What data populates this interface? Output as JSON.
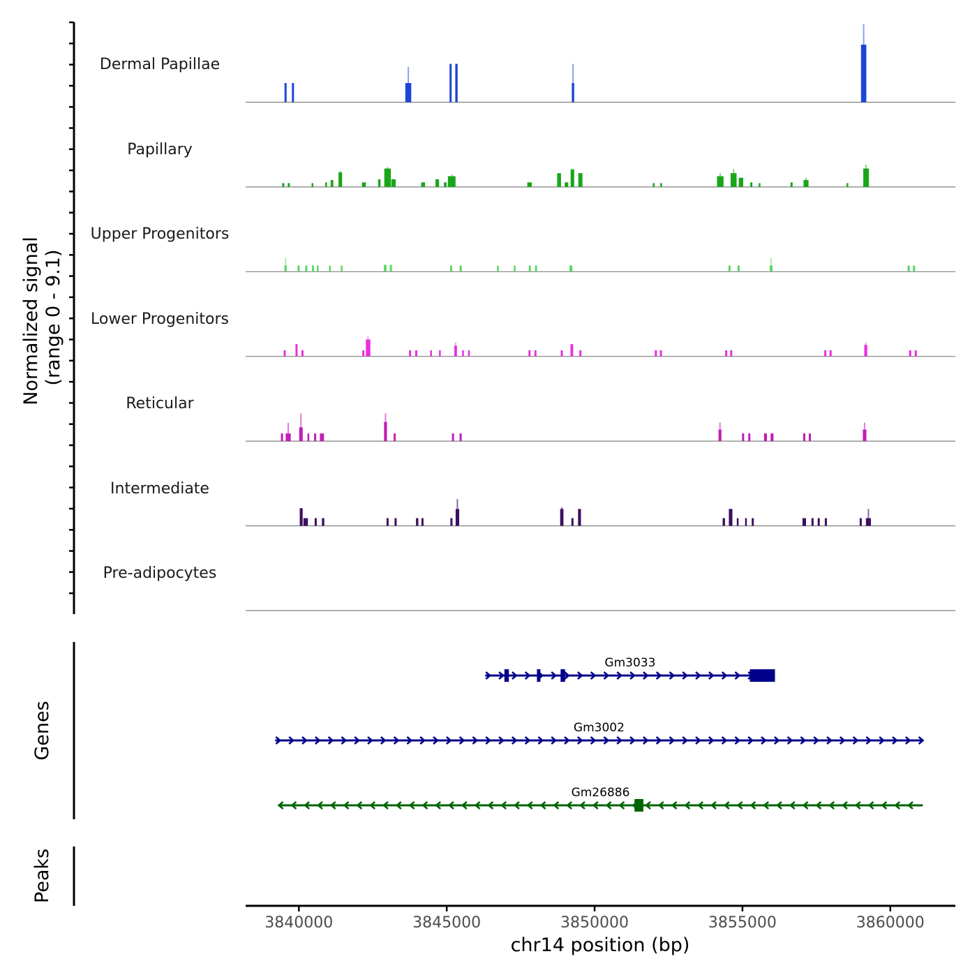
{
  "chart_data": {
    "type": "coverage-track",
    "y_axis_title_line1": "Normalized signal",
    "y_axis_title_line2": "(range 0 - 9.1)",
    "y_range": [
      0,
      9.1
    ],
    "x_axis_title": "chr14 position (bp)",
    "x_range": [
      3838200,
      3862200
    ],
    "x_ticks": [
      3840000,
      3845000,
      3850000,
      3855000,
      3860000
    ],
    "x_tick_labels": [
      "3840000",
      "3845000",
      "3850000",
      "3855000",
      "3860000"
    ],
    "tracks": [
      {
        "name": "Dermal Papillae",
        "color": "#1b46d6",
        "highlight": "#8aa0f0",
        "peaks": [
          [
            3839550,
            70,
            2.5
          ],
          [
            3839800,
            70,
            2.5
          ],
          [
            3843700,
            200,
            2.5,
            4.6
          ],
          [
            3845130,
            70,
            5.0
          ],
          [
            3845330,
            80,
            5.0
          ],
          [
            3849270,
            80,
            2.5,
            5.0
          ],
          [
            3859100,
            180,
            7.5,
            10.2
          ]
        ]
      },
      {
        "name": "Papillary",
        "color": "#19a619",
        "highlight": "#7fd67f",
        "peaks": [
          [
            3839470,
            70,
            0.5
          ],
          [
            3839660,
            70,
            0.5
          ],
          [
            3840460,
            60,
            0.5
          ],
          [
            3840920,
            60,
            0.6
          ],
          [
            3841120,
            90,
            0.9
          ],
          [
            3841400,
            120,
            1.9,
            2.1
          ],
          [
            3842200,
            130,
            0.6
          ],
          [
            3842720,
            80,
            1.0
          ],
          [
            3843000,
            220,
            2.4,
            2.6
          ],
          [
            3843200,
            150,
            1.0
          ],
          [
            3844200,
            130,
            0.6
          ],
          [
            3844680,
            120,
            1.0
          ],
          [
            3844950,
            90,
            0.6
          ],
          [
            3845170,
            260,
            1.4,
            1.6
          ],
          [
            3847800,
            150,
            0.6
          ],
          [
            3848800,
            130,
            1.8
          ],
          [
            3849050,
            120,
            0.6
          ],
          [
            3849250,
            120,
            2.3
          ],
          [
            3849520,
            140,
            1.8
          ],
          [
            3852000,
            60,
            0.5
          ],
          [
            3852250,
            60,
            0.5
          ],
          [
            3854250,
            220,
            1.4,
            1.8
          ],
          [
            3854700,
            200,
            1.8,
            2.3
          ],
          [
            3854950,
            150,
            1.2
          ],
          [
            3855300,
            70,
            0.6
          ],
          [
            3855580,
            60,
            0.5
          ],
          [
            3856660,
            70,
            0.6
          ],
          [
            3857150,
            170,
            0.9,
            1.2
          ],
          [
            3858550,
            60,
            0.5
          ],
          [
            3859180,
            190,
            2.4,
            2.9
          ]
        ]
      },
      {
        "name": "Upper Progenitors",
        "color": "#5fd66a",
        "highlight": "#a6f0ad",
        "peaks": [
          [
            3839550,
            80,
            0.8,
            1.8
          ],
          [
            3839990,
            70,
            0.8
          ],
          [
            3840250,
            70,
            0.8
          ],
          [
            3840480,
            70,
            0.8
          ],
          [
            3840640,
            60,
            0.8
          ],
          [
            3841050,
            60,
            0.8
          ],
          [
            3841450,
            60,
            0.8
          ],
          [
            3842920,
            90,
            0.9
          ],
          [
            3843110,
            70,
            0.9
          ],
          [
            3845150,
            70,
            0.8
          ],
          [
            3845470,
            70,
            0.8
          ],
          [
            3846730,
            60,
            0.8
          ],
          [
            3847300,
            60,
            0.8
          ],
          [
            3847810,
            70,
            0.8
          ],
          [
            3848020,
            70,
            0.8
          ],
          [
            3849200,
            100,
            0.8
          ],
          [
            3854560,
            70,
            0.8
          ],
          [
            3854870,
            70,
            0.8
          ],
          [
            3855970,
            100,
            0.8,
            1.8
          ],
          [
            3860620,
            70,
            0.8
          ],
          [
            3860800,
            70,
            0.8
          ]
        ]
      },
      {
        "name": "Lower Progenitors",
        "color": "#e82ee0",
        "highlight": "#f59af0",
        "peaks": [
          [
            3839520,
            70,
            0.8
          ],
          [
            3839920,
            70,
            1.6
          ],
          [
            3840120,
            70,
            0.8
          ],
          [
            3842180,
            70,
            0.8
          ],
          [
            3842340,
            150,
            2.2,
            2.6
          ],
          [
            3843760,
            70,
            0.8
          ],
          [
            3843970,
            70,
            0.8
          ],
          [
            3844470,
            60,
            0.8
          ],
          [
            3844770,
            60,
            0.8
          ],
          [
            3845300,
            90,
            1.4,
            1.8
          ],
          [
            3845550,
            60,
            0.8
          ],
          [
            3845750,
            60,
            0.8
          ],
          [
            3847800,
            70,
            0.8
          ],
          [
            3848000,
            70,
            0.8
          ],
          [
            3848890,
            70,
            0.8
          ],
          [
            3849230,
            90,
            1.6
          ],
          [
            3849520,
            70,
            0.8
          ],
          [
            3852070,
            70,
            0.8
          ],
          [
            3852240,
            70,
            0.8
          ],
          [
            3854450,
            70,
            0.8
          ],
          [
            3854620,
            70,
            0.8
          ],
          [
            3857800,
            70,
            0.8
          ],
          [
            3857980,
            70,
            0.8
          ],
          [
            3859170,
            100,
            1.5,
            1.8
          ],
          [
            3860670,
            70,
            0.8
          ],
          [
            3860860,
            70,
            0.8
          ]
        ]
      },
      {
        "name": "Reticular",
        "color": "#c01fb5",
        "highlight": "#df7ad6",
        "peaks": [
          [
            3839430,
            70,
            1.0
          ],
          [
            3839640,
            170,
            1.0,
            2.4
          ],
          [
            3840070,
            120,
            1.8,
            3.6
          ],
          [
            3840320,
            60,
            1.0
          ],
          [
            3840550,
            70,
            1.0
          ],
          [
            3840780,
            140,
            1.0
          ],
          [
            3842930,
            100,
            2.5,
            3.6
          ],
          [
            3843240,
            70,
            1.0
          ],
          [
            3845210,
            70,
            1.0
          ],
          [
            3845470,
            70,
            1.0
          ],
          [
            3854240,
            100,
            1.5,
            2.4
          ],
          [
            3855020,
            70,
            1.0
          ],
          [
            3855230,
            70,
            1.0
          ],
          [
            3855780,
            100,
            1.0
          ],
          [
            3856000,
            100,
            1.0
          ],
          [
            3857090,
            70,
            1.0
          ],
          [
            3857280,
            70,
            1.0
          ],
          [
            3859130,
            120,
            1.5,
            2.4
          ]
        ]
      },
      {
        "name": "Intermediate",
        "color": "#3d0f5f",
        "highlight": "#8a6aa8",
        "peaks": [
          [
            3840080,
            100,
            2.3
          ],
          [
            3840230,
            150,
            1.0
          ],
          [
            3840570,
            70,
            1.0
          ],
          [
            3840820,
            80,
            1.0
          ],
          [
            3843000,
            70,
            1.0
          ],
          [
            3843270,
            70,
            1.0
          ],
          [
            3844000,
            80,
            1.0
          ],
          [
            3844180,
            70,
            1.0
          ],
          [
            3845160,
            70,
            1.0
          ],
          [
            3845360,
            120,
            2.2,
            3.5
          ],
          [
            3848890,
            110,
            2.2,
            2.4
          ],
          [
            3849250,
            70,
            1.0
          ],
          [
            3849490,
            100,
            2.2
          ],
          [
            3854370,
            80,
            1.0
          ],
          [
            3854600,
            120,
            2.2
          ],
          [
            3854840,
            60,
            1.0
          ],
          [
            3855120,
            60,
            1.0
          ],
          [
            3855350,
            70,
            1.0
          ],
          [
            3857090,
            120,
            1.0
          ],
          [
            3857370,
            70,
            1.0
          ],
          [
            3857580,
            70,
            1.0
          ],
          [
            3857820,
            70,
            1.0
          ],
          [
            3859000,
            70,
            1.0
          ],
          [
            3859260,
            170,
            1.0,
            2.2
          ]
        ]
      },
      {
        "name": "Pre-adipocytes",
        "color": "#000000",
        "highlight": "#555555",
        "peaks": []
      }
    ],
    "genes_title": "Genes",
    "genes": [
      {
        "name": "Gm3033",
        "color": "#00008b",
        "start": 3846300,
        "end": 3856100,
        "strand": "+",
        "exons": [
          [
            3846950,
            3847100
          ],
          [
            3848050,
            3848150
          ],
          [
            3848850,
            3849000
          ],
          [
            3855250,
            3856100
          ]
        ]
      },
      {
        "name": "Gm3002",
        "color": "#00008b",
        "start": 3839200,
        "end": 3861100,
        "strand": "+",
        "exons": []
      },
      {
        "name": "Gm26886",
        "color": "#006400",
        "start": 3839300,
        "end": 3861100,
        "strand": "-",
        "exons": [
          [
            3851350,
            3851650
          ]
        ]
      }
    ],
    "peaks_title": "Peaks"
  }
}
